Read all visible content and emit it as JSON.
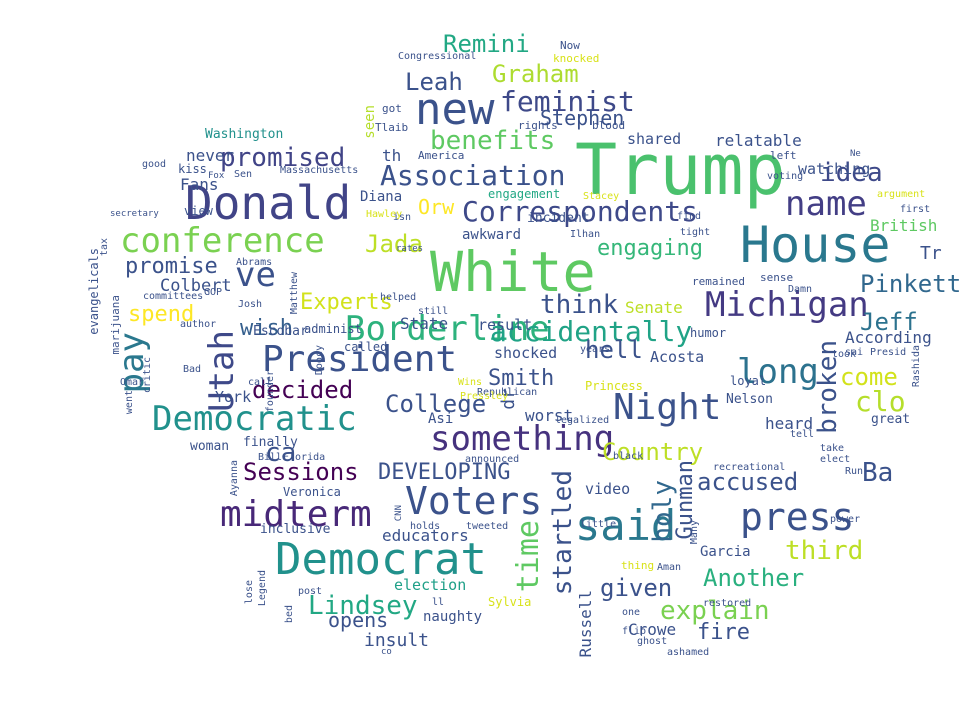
{
  "wordcloud": {
    "colormap": "viridis",
    "background": "#ffffff",
    "words": [
      {
        "text": "Trump",
        "color": "#4ac16d"
      },
      {
        "text": "White",
        "color": "#5ec962"
      },
      {
        "text": "House",
        "color": "#2a788e"
      },
      {
        "text": "Donald",
        "color": "#414487"
      },
      {
        "text": "new",
        "color": "#3b528b"
      },
      {
        "text": "Democrat",
        "color": "#21918c"
      },
      {
        "text": "President",
        "color": "#3b528b"
      },
      {
        "text": "Borderline",
        "color": "#2db27d"
      },
      {
        "text": "Utah",
        "color": "#3e4989"
      },
      {
        "text": "Michigan",
        "color": "#443a83"
      },
      {
        "text": "Voters",
        "color": "#3b528b"
      },
      {
        "text": "midterm",
        "color": "#482878"
      },
      {
        "text": "something",
        "color": "#46327e"
      },
      {
        "text": "Democratic",
        "color": "#21918c"
      },
      {
        "text": "conference",
        "color": "#7ad151"
      },
      {
        "text": "Night",
        "color": "#3b528b"
      },
      {
        "text": "press",
        "color": "#3b528b"
      },
      {
        "text": "said",
        "color": "#2a788e"
      },
      {
        "text": "long",
        "color": "#2c728e"
      },
      {
        "text": "name",
        "color": "#433e85"
      },
      {
        "text": "Correspondents",
        "color": "#3e4989"
      },
      {
        "text": "Association",
        "color": "#3b528b"
      },
      {
        "text": "accidentally",
        "color": "#20a386"
      },
      {
        "text": "ve",
        "color": "#3b528b"
      },
      {
        "text": "feminist",
        "color": "#3e4989"
      },
      {
        "text": "promised",
        "color": "#414487"
      },
      {
        "text": "benefits",
        "color": "#5ec962"
      },
      {
        "text": "Remini",
        "color": "#22a884"
      },
      {
        "text": "Graham",
        "color": "#addc30"
      },
      {
        "text": "Leah",
        "color": "#3b528b"
      },
      {
        "text": "Stephen",
        "color": "#3b528b"
      },
      {
        "text": "idea",
        "color": "#3e4989"
      },
      {
        "text": "engaging",
        "color": "#35b779"
      },
      {
        "text": "Pinkett",
        "color": "#31688e"
      },
      {
        "text": "Jeff",
        "color": "#2c728e"
      },
      {
        "text": "Jada",
        "color": "#bddf26"
      },
      {
        "text": "Experts",
        "color": "#d2e21b"
      },
      {
        "text": "Orw",
        "color": "#fde725"
      },
      {
        "text": "promise",
        "color": "#3b528b"
      },
      {
        "text": "think",
        "color": "#3b528b"
      },
      {
        "text": "wish",
        "color": "#355f8d"
      },
      {
        "text": "spend",
        "color": "#fde725"
      },
      {
        "text": "pay",
        "color": "#2a788e"
      },
      {
        "text": "decided",
        "color": "#440154"
      },
      {
        "text": "College",
        "color": "#3b528b"
      },
      {
        "text": "Smith",
        "color": "#3b528b"
      },
      {
        "text": "hell",
        "color": "#3b528b"
      },
      {
        "text": "Country",
        "color": "#bddf26"
      },
      {
        "text": "accused",
        "color": "#3b528b"
      },
      {
        "text": "Sessions",
        "color": "#440154"
      },
      {
        "text": "DEVELOPING",
        "color": "#3b528b"
      },
      {
        "text": "ca",
        "color": "#3b528b"
      },
      {
        "text": "holy",
        "color": "#31688e"
      },
      {
        "text": "broken",
        "color": "#3b528b"
      },
      {
        "text": "come",
        "color": "#d2e21b"
      },
      {
        "text": "clo",
        "color": "#b5de2b"
      },
      {
        "text": "Ba",
        "color": "#3b528b"
      },
      {
        "text": "Another",
        "color": "#2ab07f"
      },
      {
        "text": "third",
        "color": "#bddf26"
      },
      {
        "text": "given",
        "color": "#3b528b"
      },
      {
        "text": "explain",
        "color": "#7ad151"
      },
      {
        "text": "fire",
        "color": "#3b528b"
      },
      {
        "text": "time",
        "color": "#5ec962"
      },
      {
        "text": "startled",
        "color": "#3b528b"
      },
      {
        "text": "Gunman",
        "color": "#3b528b"
      },
      {
        "text": "Lindsey",
        "color": "#22a884"
      },
      {
        "text": "opens",
        "color": "#3b528b"
      },
      {
        "text": "insult",
        "color": "#3b528b"
      },
      {
        "text": "educators",
        "color": "#3b528b"
      },
      {
        "text": "election",
        "color": "#1fa088"
      },
      {
        "text": "naughty",
        "color": "#3b528b"
      },
      {
        "text": "Crowe",
        "color": "#3b528b"
      },
      {
        "text": "Russell",
        "color": "#3b528b"
      },
      {
        "text": "shocked",
        "color": "#3b528b"
      },
      {
        "text": "worst",
        "color": "#3b528b"
      },
      {
        "text": "State",
        "color": "#3b528b"
      },
      {
        "text": "result",
        "color": "#3b528b"
      },
      {
        "text": "heard",
        "color": "#3b528b"
      },
      {
        "text": "According",
        "color": "#3b528b"
      },
      {
        "text": "watching",
        "color": "#3b528b"
      },
      {
        "text": "relatable",
        "color": "#3b528b"
      },
      {
        "text": "British",
        "color": "#5ec962"
      },
      {
        "text": "Senate",
        "color": "#bddf26"
      },
      {
        "text": "Acosta",
        "color": "#3b528b"
      },
      {
        "text": "Fans",
        "color": "#3b528b"
      },
      {
        "text": "never",
        "color": "#3b528b"
      },
      {
        "text": "Colbert",
        "color": "#3b528b"
      },
      {
        "text": "York",
        "color": "#3b528b"
      },
      {
        "text": "shared",
        "color": "#3b528b"
      },
      {
        "text": "awkward",
        "color": "#3b528b"
      },
      {
        "text": "video",
        "color": "#3b528b"
      },
      {
        "text": "Garcia",
        "color": "#3b528b"
      },
      {
        "text": "Washington",
        "color": "#21918c"
      },
      {
        "text": "Tr",
        "color": "#3b528b"
      },
      {
        "text": "seen",
        "color": "#b5de2b"
      },
      {
        "text": "th",
        "color": "#3b528b"
      },
      {
        "text": "Diana",
        "color": "#3b528b"
      },
      {
        "text": "called",
        "color": "#3b528b"
      },
      {
        "text": "Escobar",
        "color": "#3b528b"
      },
      {
        "text": "Princess",
        "color": "#d8e219"
      },
      {
        "text": "great",
        "color": "#3b528b"
      },
      {
        "text": "Asi",
        "color": "#3b528b"
      },
      {
        "text": "dr",
        "color": "#3b528b"
      },
      {
        "text": "finally",
        "color": "#3b528b"
      },
      {
        "text": "woman",
        "color": "#3b528b"
      },
      {
        "text": "Veronica",
        "color": "#3b528b"
      },
      {
        "text": "Nelson",
        "color": "#3b528b"
      },
      {
        "text": "inclusive",
        "color": "#3b528b"
      },
      {
        "text": "Sylvia",
        "color": "#d8e219"
      },
      {
        "text": "humor",
        "color": "#3b528b"
      },
      {
        "text": "loyal",
        "color": "#3b528b"
      },
      {
        "text": "incident",
        "color": "#3b528b"
      },
      {
        "text": "engagement",
        "color": "#22a884"
      },
      {
        "text": "administ",
        "color": "#3b528b"
      },
      {
        "text": "evangelicals",
        "color": "#3b528b"
      },
      {
        "text": "marijuana",
        "color": "#3b528b"
      },
      {
        "text": "Massachusetts",
        "color": "#3b528b"
      },
      {
        "text": "Congressional",
        "color": "#3b528b"
      },
      {
        "text": "Now",
        "color": "#3b528b"
      },
      {
        "text": "knocked",
        "color": "#d8e219"
      },
      {
        "text": "got",
        "color": "#3b528b"
      },
      {
        "text": "Tlaib",
        "color": "#3b528b"
      },
      {
        "text": "rights",
        "color": "#3b528b"
      },
      {
        "text": "blood",
        "color": "#3b528b"
      },
      {
        "text": "America",
        "color": "#3b528b"
      },
      {
        "text": "left",
        "color": "#3b528b"
      },
      {
        "text": "voting",
        "color": "#3b528b"
      },
      {
        "text": "argument",
        "color": "#d8e219"
      },
      {
        "text": "first",
        "color": "#3b528b"
      },
      {
        "text": "Ilhan",
        "color": "#3b528b"
      },
      {
        "text": "tight",
        "color": "#3b528b"
      },
      {
        "text": "find",
        "color": "#3b528b"
      },
      {
        "text": "Stacey",
        "color": "#d8e219"
      },
      {
        "text": "Hawley",
        "color": "#d8e219"
      },
      {
        "text": "Josh",
        "color": "#3b528b"
      },
      {
        "text": "Abrams",
        "color": "#3b528b"
      },
      {
        "text": "Matthew",
        "color": "#3b528b"
      },
      {
        "text": "committees",
        "color": "#3b528b"
      },
      {
        "text": "view",
        "color": "#3b528b"
      },
      {
        "text": "tax",
        "color": "#3b528b"
      },
      {
        "text": "secretary",
        "color": "#3b528b"
      },
      {
        "text": "good",
        "color": "#3b528b"
      },
      {
        "text": "kiss",
        "color": "#3b528b"
      },
      {
        "text": "Sen",
        "color": "#3b528b"
      },
      {
        "text": "Fox",
        "color": "#3b528b"
      },
      {
        "text": "GOP",
        "color": "#3b528b"
      },
      {
        "text": "author",
        "color": "#3b528b"
      },
      {
        "text": "critic",
        "color": "#3b528b"
      },
      {
        "text": "Bad",
        "color": "#3b528b"
      },
      {
        "text": "went",
        "color": "#3b528b"
      },
      {
        "text": "Omar",
        "color": "#3b528b"
      },
      {
        "text": "call",
        "color": "#3b528b"
      },
      {
        "text": "founder",
        "color": "#3b528b"
      },
      {
        "text": "Doocy",
        "color": "#3b528b"
      },
      {
        "text": "still",
        "color": "#3b528b"
      },
      {
        "text": "helped",
        "color": "#3b528b"
      },
      {
        "text": "remained",
        "color": "#3b528b"
      },
      {
        "text": "sense",
        "color": "#3b528b"
      },
      {
        "text": "Damn",
        "color": "#3b528b"
      },
      {
        "text": "took",
        "color": "#3b528b"
      },
      {
        "text": "sai",
        "color": "#3b528b"
      },
      {
        "text": "Presid",
        "color": "#3b528b"
      },
      {
        "text": "Rashida",
        "color": "#3b528b"
      },
      {
        "text": "years",
        "color": "#3b528b"
      },
      {
        "text": "Wins",
        "color": "#d8e219"
      },
      {
        "text": "Republican",
        "color": "#3b528b"
      },
      {
        "text": "legalized",
        "color": "#3b528b"
      },
      {
        "text": "Pressley",
        "color": "#d8e219"
      },
      {
        "text": "tell",
        "color": "#3b528b"
      },
      {
        "text": "take",
        "color": "#3b528b"
      },
      {
        "text": "elect",
        "color": "#3b528b"
      },
      {
        "text": "Run",
        "color": "#3b528b"
      },
      {
        "text": "black",
        "color": "#3b528b"
      },
      {
        "text": "recreational",
        "color": "#3b528b"
      },
      {
        "text": "announced",
        "color": "#3b528b"
      },
      {
        "text": "Bill",
        "color": "#3b528b"
      },
      {
        "text": "Florida",
        "color": "#3b528b"
      },
      {
        "text": "Ayanna",
        "color": "#3b528b"
      },
      {
        "text": "CNN",
        "color": "#3b528b"
      },
      {
        "text": "holds",
        "color": "#3b528b"
      },
      {
        "text": "tweeted",
        "color": "#3b528b"
      },
      {
        "text": "little",
        "color": "#3b528b"
      },
      {
        "text": "Many",
        "color": "#3b528b"
      },
      {
        "text": "power",
        "color": "#3b528b"
      },
      {
        "text": "lose",
        "color": "#3b528b"
      },
      {
        "text": "Legend",
        "color": "#3b528b"
      },
      {
        "text": "post",
        "color": "#3b528b"
      },
      {
        "text": "bed",
        "color": "#3b528b"
      },
      {
        "text": "ll",
        "color": "#3b528b"
      },
      {
        "text": "thing",
        "color": "#d8e219"
      },
      {
        "text": "Aman",
        "color": "#3b528b"
      },
      {
        "text": "restored",
        "color": "#3b528b"
      },
      {
        "text": "one",
        "color": "#3b528b"
      },
      {
        "text": "flip",
        "color": "#3b528b"
      },
      {
        "text": "ghost",
        "color": "#3b528b"
      },
      {
        "text": "ashamed",
        "color": "#3b528b"
      },
      {
        "text": "co",
        "color": "#3b528b"
      },
      {
        "text": "isn",
        "color": "#3b528b"
      },
      {
        "text": "rates",
        "color": "#3b528b"
      },
      {
        "text": "Ne",
        "color": "#3b528b"
      }
    ]
  }
}
